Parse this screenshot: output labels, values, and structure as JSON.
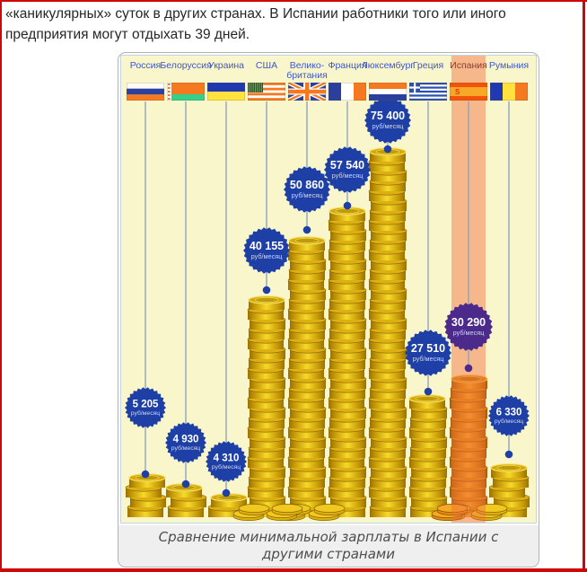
{
  "intro": {
    "line1": "«каникулярных» суток в других странах. В Испании работники того или иного",
    "line2": "предприятия могут отдыхать 39 дней."
  },
  "infographic": {
    "caption_line1": "Сравнение минимальной зарплаты в Испании с",
    "caption_line2": "другими странами",
    "unit": "руб/месяц",
    "countries": [
      {
        "name": "Россия",
        "label_lines": [
          "Россия"
        ],
        "value": "5 205",
        "unit": "руб/месяц",
        "flag": "russia",
        "highlighted": false
      },
      {
        "name": "Белоруссия",
        "label_lines": [
          "Белоруссия"
        ],
        "value": "4 930",
        "unit": "руб/месяц",
        "flag": "belarus",
        "highlighted": false
      },
      {
        "name": "Украина",
        "label_lines": [
          "Украина"
        ],
        "value": "4 310",
        "unit": "руб/месяц",
        "flag": "ukraine",
        "highlighted": false
      },
      {
        "name": "США",
        "label_lines": [
          "США"
        ],
        "value": "40 155",
        "unit": "руб/месяц",
        "flag": "usa",
        "highlighted": false
      },
      {
        "name": "Великобритания",
        "label_lines": [
          "Велико-",
          "британия"
        ],
        "value": "50 860",
        "unit": "руб/месяц",
        "flag": "uk",
        "highlighted": false
      },
      {
        "name": "Франция",
        "label_lines": [
          "Франция"
        ],
        "value": "57 540",
        "unit": "руб/месяц",
        "flag": "france",
        "highlighted": false
      },
      {
        "name": "Люксембург",
        "label_lines": [
          "Люксембург"
        ],
        "value": "75 400",
        "unit": "руб/месяц",
        "flag": "luxembourg",
        "highlighted": false
      },
      {
        "name": "Греция",
        "label_lines": [
          "Греция"
        ],
        "value": "27 510",
        "unit": "руб/месяц",
        "flag": "greece",
        "highlighted": false
      },
      {
        "name": "Испания",
        "label_lines": [
          "Испания"
        ],
        "value": "30 290",
        "unit": "руб/месяц",
        "flag": "spain",
        "highlighted": true
      },
      {
        "name": "Румыния",
        "label_lines": [
          "Румыния"
        ],
        "value": "6 330",
        "unit": "руб/месяц",
        "flag": "romania",
        "highlighted": false
      }
    ]
  },
  "colors": {
    "page_border": "#cf0707",
    "chart_bg": "#faf6cc",
    "chart_border": "#c3d4e6",
    "highlight_band": "rgba(242,108,60,0.45)",
    "badge_blue": "#1d3fa6",
    "badge_purple": "#4b2a8c",
    "label_blue": "#3f58c4",
    "label_spain": "#8a3c2e",
    "hang_line": "#8fa3bd",
    "coin_gold": "#f0c020",
    "coin_orange": "#f09a1a",
    "caption_bg": "#efefef"
  },
  "chart_data": {
    "type": "bar",
    "title": "Сравнение минимальной зарплаты в Испании с другими странами",
    "categories": [
      "Россия",
      "Белоруссия",
      "Украина",
      "США",
      "Великобритания",
      "Франция",
      "Люксембург",
      "Греция",
      "Испания",
      "Румыния"
    ],
    "values": [
      5205,
      4930,
      4310,
      40155,
      50860,
      57540,
      75400,
      27510,
      30290,
      6330
    ],
    "unit": "руб/месяц",
    "highlighted_category": "Испания",
    "legend": false,
    "grid": false
  }
}
